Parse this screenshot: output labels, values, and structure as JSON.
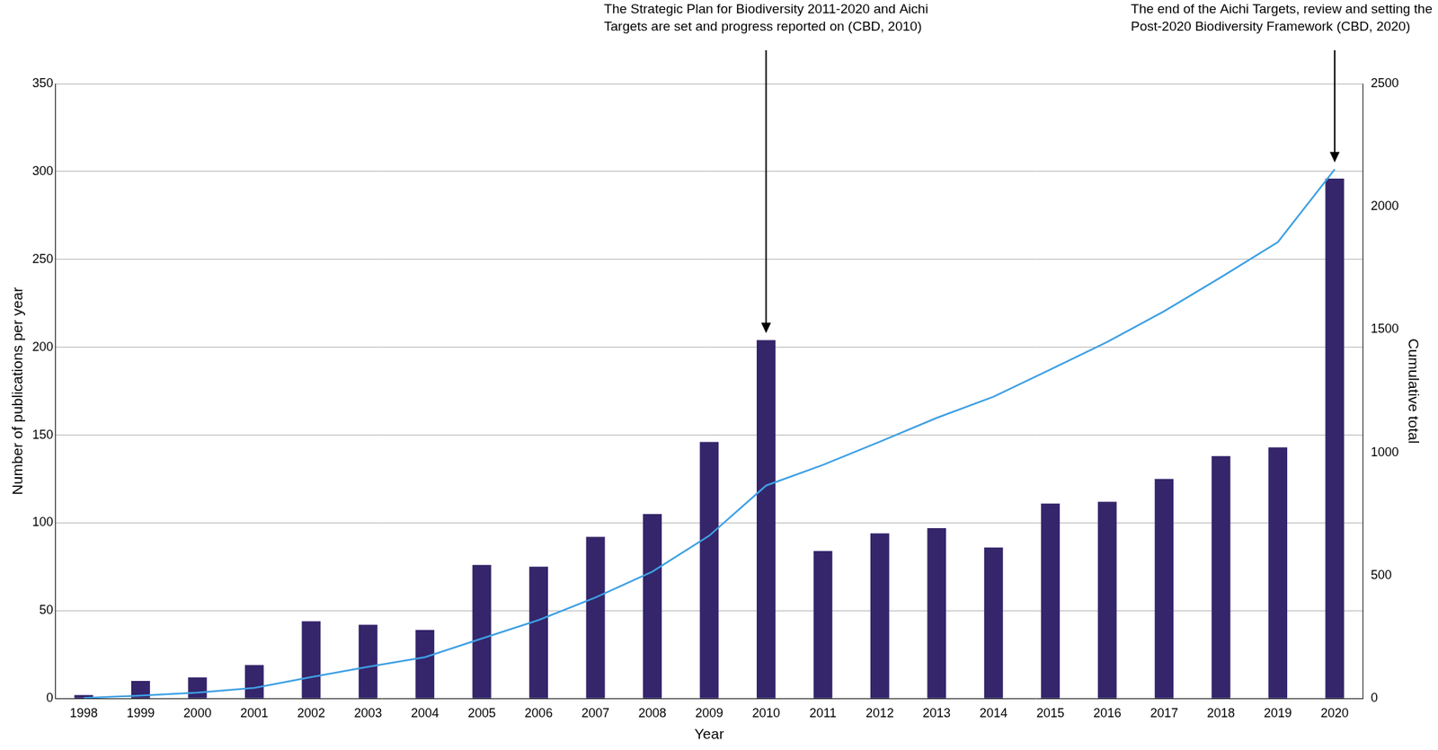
{
  "chart_data": {
    "type": "bar",
    "categories": [
      "1998",
      "1999",
      "2000",
      "2001",
      "2002",
      "2003",
      "2004",
      "2005",
      "2006",
      "2007",
      "2008",
      "2009",
      "2010",
      "2011",
      "2012",
      "2013",
      "2014",
      "2015",
      "2016",
      "2017",
      "2018",
      "2019",
      "2020"
    ],
    "series": [
      {
        "name": "Number of publications per year",
        "type": "bar",
        "color": "#35256b",
        "values": [
          2,
          10,
          12,
          19,
          44,
          42,
          39,
          76,
          75,
          92,
          105,
          146,
          204,
          84,
          94,
          97,
          86,
          111,
          112,
          125,
          138,
          143,
          296
        ]
      },
      {
        "name": "Cumulative total",
        "type": "line",
        "color": "#3ea0e4",
        "axis": "y2",
        "values": [
          2,
          12,
          24,
          43,
          87,
          129,
          168,
          244,
          319,
          411,
          516,
          662,
          866,
          950,
          1044,
          1141,
          1227,
          1338,
          1450,
          1575,
          1713,
          1856,
          2152
        ]
      }
    ],
    "x_label": "Year",
    "y_label": "Number of publications per year",
    "y2_label": "Cumulative total",
    "ylim": [
      0,
      350
    ],
    "yticks": [
      0,
      50,
      100,
      150,
      200,
      250,
      300,
      350
    ],
    "y2lim": [
      0,
      2500
    ],
    "y2ticks": [
      0,
      500,
      1000,
      1500,
      2000,
      2500
    ],
    "grid": true,
    "annotations": [
      {
        "x": "2010",
        "text": [
          "The Strategic Plan for Biodiversity 2011-2020 and Aichi",
          "Targets are set and progress reported on (CBD, 2010)"
        ]
      },
      {
        "x": "2020",
        "text": [
          "The end of the Aichi Targets, review and setting the",
          "Post-2020 Biodiversity Framework (CBD, 2020)"
        ]
      }
    ]
  }
}
